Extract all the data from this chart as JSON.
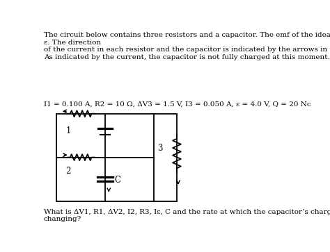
{
  "background_color": "#ffffff",
  "para1": "The circuit below contains three resistors and a capacitor. The emf of the ideal battery is\nε. The direction\nof the current in each resistor and the capacitor is indicated by the arrows in the diagram.\nAs indicated by the current, the capacitor is not fully charged at this moment.",
  "para2": "I1 = 0.100 A, R2 = 10 Ω, ΔV3 = 1.5 V, I3 = 0.050 A, ε = 4.0 V, Q = 20 Nc",
  "para3": "What is ΔV1, R1, ΔV2, I2, R3, Iε, C and the rate at which the capacitor’s charge is\nchanging?",
  "fontsize": 7.5,
  "fontsize_label": 8.5,
  "L": 0.06,
  "R": 0.44,
  "B": 0.12,
  "T": 0.57,
  "midX": 0.25,
  "midY": 0.345,
  "r3x": 0.53,
  "lw": 1.3
}
